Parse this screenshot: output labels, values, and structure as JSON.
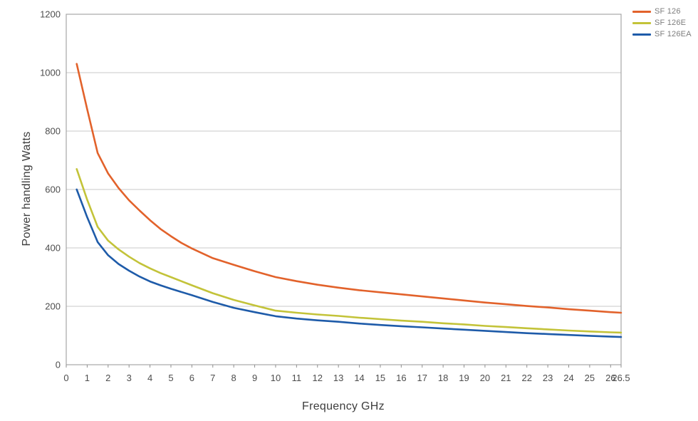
{
  "chart_data": {
    "type": "line",
    "title": "",
    "xlabel": "Frequency GHz",
    "ylabel": "Power handling Watts",
    "xlim": [
      0,
      26.5
    ],
    "ylim": [
      0,
      1200
    ],
    "x_ticks": [
      0,
      1,
      2,
      3,
      4,
      5,
      6,
      7,
      8,
      9,
      10,
      11,
      12,
      13,
      14,
      15,
      16,
      17,
      18,
      19,
      20,
      21,
      22,
      23,
      24,
      25,
      26,
      26.5
    ],
    "y_ticks": [
      0,
      200,
      400,
      600,
      800,
      1000,
      1200
    ],
    "grid": "horizontal",
    "legend_position": "top-right",
    "colors": {
      "grid": "#c9c9c9",
      "border": "#a6a6a6",
      "tick": "#8f8f8f",
      "tick_text": "#4d4d4d"
    },
    "series": [
      {
        "name": "SF 126",
        "color": "#e2622b",
        "points": [
          [
            0.5,
            1030
          ],
          [
            1,
            875
          ],
          [
            1.5,
            725
          ],
          [
            2,
            655
          ],
          [
            2.5,
            605
          ],
          [
            3,
            563
          ],
          [
            3.5,
            528
          ],
          [
            4,
            495
          ],
          [
            4.5,
            465
          ],
          [
            5,
            440
          ],
          [
            5.5,
            417
          ],
          [
            6,
            398
          ],
          [
            7,
            365
          ],
          [
            8,
            342
          ],
          [
            9,
            320
          ],
          [
            10,
            300
          ],
          [
            11,
            286
          ],
          [
            12,
            274
          ],
          [
            13,
            264
          ],
          [
            14,
            255
          ],
          [
            15,
            248
          ],
          [
            16,
            241
          ],
          [
            17,
            234
          ],
          [
            18,
            227
          ],
          [
            19,
            220
          ],
          [
            20,
            213
          ],
          [
            21,
            207
          ],
          [
            22,
            201
          ],
          [
            23,
            196
          ],
          [
            24,
            190
          ],
          [
            25,
            185
          ],
          [
            26,
            180
          ],
          [
            26.5,
            178
          ]
        ]
      },
      {
        "name": "SF 126E",
        "color": "#c3c339",
        "points": [
          [
            0.5,
            670
          ],
          [
            1,
            565
          ],
          [
            1.5,
            472
          ],
          [
            2,
            425
          ],
          [
            2.5,
            395
          ],
          [
            3,
            370
          ],
          [
            3.5,
            348
          ],
          [
            4,
            330
          ],
          [
            4.5,
            314
          ],
          [
            5,
            300
          ],
          [
            6,
            272
          ],
          [
            7,
            245
          ],
          [
            8,
            222
          ],
          [
            9,
            203
          ],
          [
            10,
            185
          ],
          [
            11,
            178
          ],
          [
            12,
            172
          ],
          [
            13,
            167
          ],
          [
            14,
            161
          ],
          [
            15,
            156
          ],
          [
            16,
            151
          ],
          [
            17,
            147
          ],
          [
            18,
            142
          ],
          [
            19,
            138
          ],
          [
            20,
            133
          ],
          [
            21,
            129
          ],
          [
            22,
            125
          ],
          [
            23,
            121
          ],
          [
            24,
            117
          ],
          [
            25,
            114
          ],
          [
            26,
            111
          ],
          [
            26.5,
            110
          ]
        ]
      },
      {
        "name": "SF 126EA",
        "color": "#1e5ba9",
        "points": [
          [
            0.5,
            600
          ],
          [
            1,
            505
          ],
          [
            1.5,
            420
          ],
          [
            2,
            375
          ],
          [
            2.5,
            345
          ],
          [
            3,
            322
          ],
          [
            3.5,
            302
          ],
          [
            4,
            285
          ],
          [
            4.5,
            272
          ],
          [
            5,
            260
          ],
          [
            6,
            238
          ],
          [
            7,
            215
          ],
          [
            8,
            195
          ],
          [
            9,
            180
          ],
          [
            10,
            166
          ],
          [
            11,
            158
          ],
          [
            12,
            152
          ],
          [
            13,
            147
          ],
          [
            14,
            141
          ],
          [
            15,
            136
          ],
          [
            16,
            132
          ],
          [
            17,
            128
          ],
          [
            18,
            124
          ],
          [
            19,
            120
          ],
          [
            20,
            116
          ],
          [
            21,
            112
          ],
          [
            22,
            108
          ],
          [
            23,
            105
          ],
          [
            24,
            102
          ],
          [
            25,
            99
          ],
          [
            26,
            96
          ],
          [
            26.5,
            95
          ]
        ]
      }
    ]
  },
  "labels": {
    "xlabel": "Frequency GHz",
    "ylabel": "Power handling Watts"
  },
  "legend": {
    "items": [
      {
        "label": "SF 126",
        "color": "#e2622b"
      },
      {
        "label": "SF 126E",
        "color": "#c3c339"
      },
      {
        "label": "SF 126EA",
        "color": "#1e5ba9"
      }
    ]
  }
}
